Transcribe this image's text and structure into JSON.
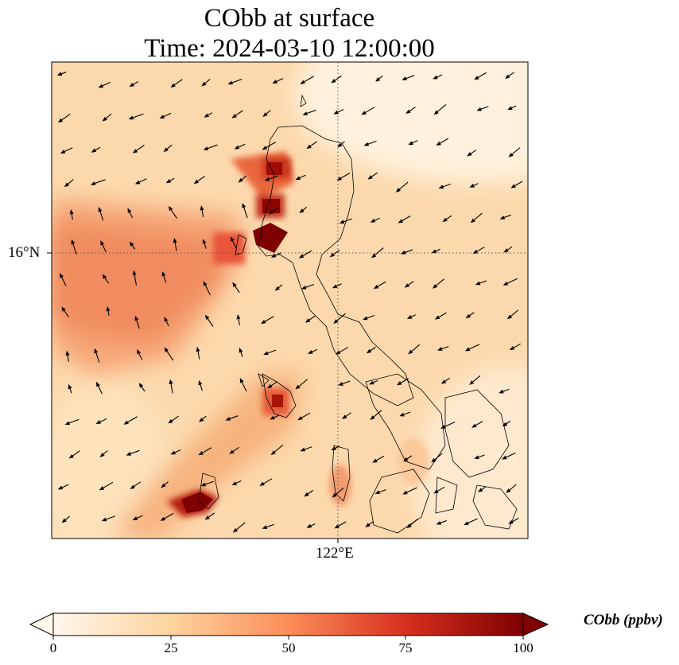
{
  "title": {
    "line1": "CObb at surface",
    "line2": "Time: 2024-03-10 12:00:00"
  },
  "axes": {
    "lat_label": "16°N",
    "lon_label": "122°E"
  },
  "colorbar": {
    "label": "CObb (ppbv)",
    "ticks": [
      "0",
      "25",
      "50",
      "75",
      "100"
    ],
    "range": [
      0,
      100
    ],
    "colormap": "OrRd",
    "colors": [
      "#fff7ec",
      "#fdd49e",
      "#fc8d59",
      "#d7301f",
      "#7f0000"
    ]
  },
  "map": {
    "variable": "CObb",
    "units": "ppbv",
    "wind_vectors": true,
    "gridlines": "dotted",
    "coastlines": true,
    "plumes": [
      {
        "region": "north-west Luzon coast",
        "level": 100
      },
      {
        "region": "central-west Luzon",
        "level": 85
      },
      {
        "region": "south-west (Mindoro)",
        "level": 100
      },
      {
        "region": "west offshore band",
        "level": 55
      }
    ]
  }
}
